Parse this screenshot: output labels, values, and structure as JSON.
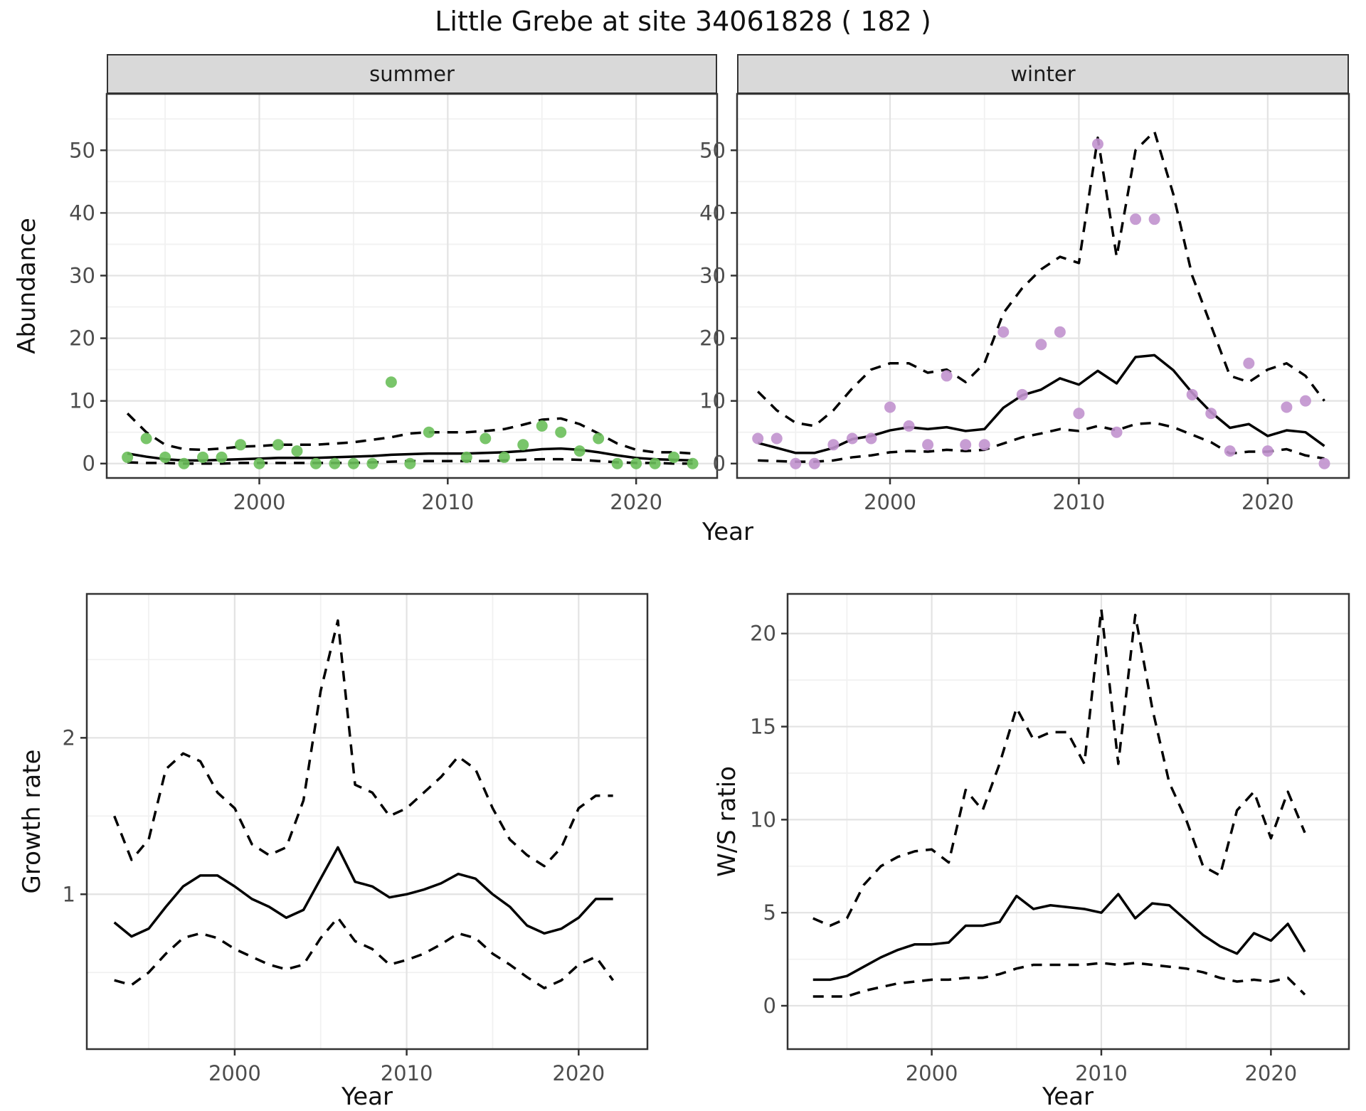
{
  "page": {
    "title": "Little Grebe at site 34061828 ( 182 )"
  },
  "facets": {
    "summer": "summer",
    "winter": "winter"
  },
  "axes": {
    "abundance": "Abundance",
    "year": "Year",
    "growth_rate": "Growth rate",
    "ws_ratio": "W/S ratio"
  },
  "colors": {
    "summer_point": "#6abf5a",
    "winter_point": "#c192ce",
    "line": "#000000",
    "panel_border": "#333333",
    "grid_major": "#e3e3e3",
    "grid_minor": "#f1f1f1",
    "strip_bg": "#d9d9d9",
    "tick_label": "#4d4d4d"
  },
  "chart_data": [
    {
      "type": "line",
      "name": "abundance-summer",
      "facet": "summer",
      "xlabel": "Year",
      "ylabel": "Abundance",
      "xlim": [
        1991.9,
        2024.3
      ],
      "ylim": [
        -2.3,
        59
      ],
      "xticks": [
        2000,
        2010,
        2020
      ],
      "yticks": [
        0,
        10,
        20,
        30,
        40,
        50
      ],
      "minor_x": [
        1995,
        2005,
        2015
      ],
      "minor_y": [
        5,
        15,
        25,
        35,
        45,
        55
      ],
      "point_color": "#6abf5a",
      "x": [
        1993,
        1994,
        1995,
        1996,
        1997,
        1998,
        1999,
        2000,
        2001,
        2002,
        2003,
        2004,
        2005,
        2006,
        2007,
        2008,
        2009,
        2010,
        2011,
        2012,
        2013,
        2014,
        2015,
        2016,
        2017,
        2018,
        2019,
        2020,
        2021,
        2022,
        2023
      ],
      "series": [
        {
          "name": "observed",
          "type": "scatter",
          "values": [
            1,
            4,
            1,
            0,
            1,
            1,
            3,
            0,
            3,
            2,
            0,
            0,
            0,
            0,
            13,
            0,
            5,
            null,
            1,
            4,
            1,
            3,
            6,
            5,
            2,
            4,
            0,
            0,
            0,
            1,
            0
          ]
        },
        {
          "name": "fit",
          "type": "line",
          "style": "solid",
          "values": [
            1.6,
            1.1,
            0.7,
            0.5,
            0.5,
            0.6,
            0.7,
            0.8,
            0.9,
            0.9,
            0.9,
            1.0,
            1.1,
            1.2,
            1.4,
            1.5,
            1.6,
            1.6,
            1.6,
            1.7,
            1.8,
            2.0,
            2.3,
            2.4,
            2.2,
            1.8,
            1.3,
            0.9,
            0.7,
            0.6,
            0.5
          ]
        },
        {
          "name": "upper_ci",
          "type": "line",
          "style": "dashed",
          "values": [
            8,
            5,
            3,
            2.3,
            2.2,
            2.4,
            2.7,
            2.8,
            3,
            3,
            3,
            3.2,
            3.4,
            3.8,
            4.2,
            4.8,
            5,
            5,
            5,
            5.2,
            5.5,
            6.2,
            7,
            7.2,
            6.3,
            4.8,
            3.2,
            2.2,
            1.8,
            1.8,
            1.6
          ]
        },
        {
          "name": "lower_ci",
          "type": "line",
          "style": "dashed",
          "values": [
            0.2,
            0.1,
            0.1,
            0,
            0,
            0,
            0.1,
            0.1,
            0.1,
            0.1,
            0.1,
            0.1,
            0.1,
            0.2,
            0.3,
            0.4,
            0.4,
            0.4,
            0.4,
            0.4,
            0.5,
            0.6,
            0.7,
            0.7,
            0.6,
            0.4,
            0.2,
            0.1,
            0.1,
            0,
            0
          ]
        }
      ]
    },
    {
      "type": "line",
      "name": "abundance-winter",
      "facet": "winter",
      "xlabel": "Year",
      "ylabel": "Abundance",
      "xlim": [
        1991.9,
        2024.3
      ],
      "ylim": [
        -2.3,
        59
      ],
      "xticks": [
        2000,
        2010,
        2020
      ],
      "yticks": [
        0,
        10,
        20,
        30,
        40,
        50
      ],
      "minor_x": [
        1995,
        2005,
        2015
      ],
      "minor_y": [
        5,
        15,
        25,
        35,
        45,
        55
      ],
      "point_color": "#c192ce",
      "x": [
        1993,
        1994,
        1995,
        1996,
        1997,
        1998,
        1999,
        2000,
        2001,
        2002,
        2003,
        2004,
        2005,
        2006,
        2007,
        2008,
        2009,
        2010,
        2011,
        2012,
        2013,
        2014,
        2015,
        2016,
        2017,
        2018,
        2019,
        2020,
        2021,
        2022,
        2023
      ],
      "series": [
        {
          "name": "observed",
          "type": "scatter",
          "values": [
            4,
            4,
            0,
            0,
            3,
            4,
            4,
            9,
            6,
            3,
            14,
            3,
            3,
            21,
            11,
            19,
            21,
            8,
            51,
            5,
            39,
            39,
            null,
            11,
            8,
            2,
            16,
            2,
            9,
            10,
            0
          ]
        },
        {
          "name": "fit",
          "type": "line",
          "style": "solid",
          "values": [
            3.3,
            2.5,
            1.7,
            1.7,
            2.5,
            3.9,
            4.4,
            5.3,
            5.8,
            5.5,
            5.8,
            5.2,
            5.5,
            8.9,
            10.9,
            11.8,
            13.6,
            12.6,
            14.8,
            12.8,
            17.0,
            17.3,
            14.9,
            11.3,
            8.2,
            5.7,
            6.3,
            4.4,
            5.3,
            5.0,
            2.8
          ]
        },
        {
          "name": "upper_ci",
          "type": "line",
          "style": "dashed",
          "values": [
            11.5,
            8.5,
            6.5,
            6,
            8.5,
            12,
            15,
            16,
            16,
            14.5,
            15,
            13,
            16,
            24,
            28,
            31,
            33,
            32,
            52,
            33,
            50,
            53,
            43,
            30,
            22,
            14,
            13,
            15,
            16,
            14,
            10
          ]
        },
        {
          "name": "lower_ci",
          "type": "line",
          "style": "dashed",
          "values": [
            0.5,
            0.4,
            0.3,
            0.3,
            0.5,
            1.0,
            1.3,
            1.8,
            2.0,
            1.9,
            2.2,
            2.0,
            2.2,
            3.2,
            4.2,
            4.8,
            5.5,
            5.2,
            6.0,
            5.3,
            6.3,
            6.5,
            5.8,
            4.6,
            3.4,
            1.6,
            1.9,
            1.9,
            2.3,
            1.3,
            0.8
          ]
        }
      ]
    },
    {
      "type": "line",
      "name": "growth-rate",
      "xlabel": "Year",
      "ylabel": "Growth rate",
      "xlim": [
        1991.4,
        2024.0
      ],
      "ylim": [
        0.01,
        2.92
      ],
      "xticks": [
        2000,
        2010,
        2020
      ],
      "yticks": [
        1,
        2
      ],
      "minor_x": [
        1995,
        2005,
        2015
      ],
      "minor_y": [
        0.5,
        1.5,
        2.5
      ],
      "x": [
        1993,
        1994,
        1995,
        1996,
        1997,
        1998,
        1999,
        2000,
        2001,
        2002,
        2003,
        2004,
        2005,
        2006,
        2007,
        2008,
        2009,
        2010,
        2011,
        2012,
        2013,
        2014,
        2015,
        2016,
        2017,
        2018,
        2019,
        2020,
        2021,
        2022
      ],
      "series": [
        {
          "name": "fit",
          "type": "line",
          "style": "solid",
          "values": [
            0.82,
            0.73,
            0.78,
            0.92,
            1.05,
            1.12,
            1.12,
            1.05,
            0.97,
            0.92,
            0.85,
            0.9,
            1.1,
            1.3,
            1.08,
            1.05,
            0.98,
            1.0,
            1.03,
            1.07,
            1.13,
            1.1,
            1.0,
            0.92,
            0.8,
            0.75,
            0.78,
            0.85,
            0.97,
            0.97
          ]
        },
        {
          "name": "upper_ci",
          "type": "line",
          "style": "dashed",
          "values": [
            1.5,
            1.22,
            1.35,
            1.8,
            1.9,
            1.85,
            1.65,
            1.55,
            1.32,
            1.25,
            1.3,
            1.6,
            2.3,
            2.75,
            1.7,
            1.65,
            1.5,
            1.55,
            1.65,
            1.75,
            1.88,
            1.8,
            1.55,
            1.35,
            1.25,
            1.18,
            1.3,
            1.55,
            1.63,
            1.63
          ]
        },
        {
          "name": "lower_ci",
          "type": "line",
          "style": "dashed",
          "values": [
            0.45,
            0.42,
            0.5,
            0.62,
            0.72,
            0.75,
            0.72,
            0.65,
            0.6,
            0.55,
            0.52,
            0.55,
            0.72,
            0.85,
            0.7,
            0.65,
            0.55,
            0.58,
            0.62,
            0.68,
            0.75,
            0.72,
            0.62,
            0.55,
            0.47,
            0.4,
            0.45,
            0.55,
            0.6,
            0.45
          ]
        }
      ]
    },
    {
      "type": "line",
      "name": "ws-ratio",
      "xlabel": "Year",
      "ylabel": "W/S ratio",
      "xlim": [
        1991.5,
        2024.6
      ],
      "ylim": [
        -2.33,
        22.13
      ],
      "xticks": [
        2000,
        2010,
        2020
      ],
      "yticks": [
        0,
        5,
        10,
        15,
        20
      ],
      "minor_x": [
        1995,
        2005,
        2015
      ],
      "minor_y": [
        2.5,
        7.5,
        12.5,
        17.5
      ],
      "x": [
        1993,
        1994,
        1995,
        1996,
        1997,
        1998,
        1999,
        2000,
        2001,
        2002,
        2003,
        2004,
        2005,
        2006,
        2007,
        2008,
        2009,
        2010,
        2011,
        2012,
        2013,
        2014,
        2015,
        2016,
        2017,
        2018,
        2019,
        2020,
        2021,
        2022
      ],
      "series": [
        {
          "name": "fit",
          "type": "line",
          "style": "solid",
          "values": [
            1.4,
            1.4,
            1.6,
            2.1,
            2.6,
            3.0,
            3.3,
            3.3,
            3.4,
            4.3,
            4.3,
            4.5,
            5.9,
            5.2,
            5.4,
            5.3,
            5.2,
            5.0,
            6.0,
            4.7,
            5.5,
            5.4,
            4.6,
            3.8,
            3.2,
            2.8,
            3.9,
            3.5,
            4.4,
            2.9
          ]
        },
        {
          "name": "upper_ci",
          "type": "line",
          "style": "dashed",
          "values": [
            4.7,
            4.3,
            4.7,
            6.5,
            7.5,
            8.0,
            8.3,
            8.4,
            7.7,
            11.6,
            10.5,
            13.0,
            16.0,
            14.3,
            14.7,
            14.7,
            13.0,
            21.3,
            13.0,
            21.0,
            16.0,
            12.0,
            10.0,
            7.5,
            7.0,
            10.5,
            11.5,
            9.0,
            11.5,
            9.3
          ]
        },
        {
          "name": "lower_ci",
          "type": "line",
          "style": "dashed",
          "values": [
            0.5,
            0.5,
            0.5,
            0.8,
            1.0,
            1.2,
            1.3,
            1.4,
            1.4,
            1.5,
            1.5,
            1.7,
            2.0,
            2.2,
            2.2,
            2.2,
            2.2,
            2.3,
            2.2,
            2.3,
            2.2,
            2.1,
            2.0,
            1.8,
            1.5,
            1.3,
            1.4,
            1.3,
            1.5,
            0.6
          ]
        }
      ]
    }
  ]
}
